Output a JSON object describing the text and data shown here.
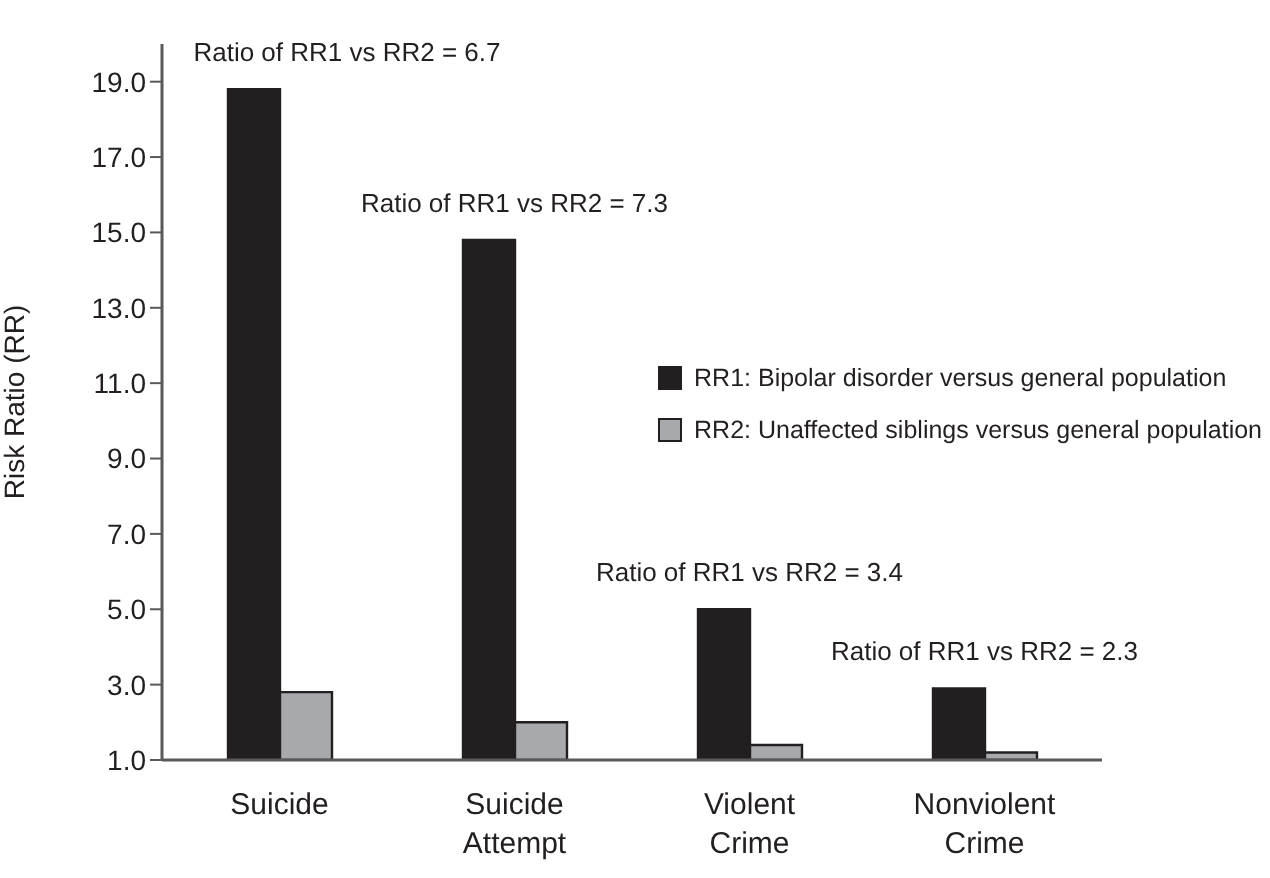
{
  "chart_data": {
    "type": "bar",
    "ylabel": "Risk Ratio (RR)",
    "categories": [
      "Suicide",
      "Suicide Attempt",
      "Violent Crime",
      "Nonviolent Crime"
    ],
    "series": [
      {
        "name": "RR1: Bipolar disorder versus general population",
        "color": "#231f20",
        "values": [
          18.8,
          14.8,
          5.0,
          2.9
        ]
      },
      {
        "name": "RR2: Unaffected siblings versus general population",
        "color": "#a7a9ac",
        "values": [
          2.8,
          2.0,
          1.4,
          1.2
        ]
      }
    ],
    "ylim": [
      1,
      20
    ],
    "yticks": [
      {
        "value": 1,
        "label": "1.0"
      },
      {
        "value": 3,
        "label": "3.0"
      },
      {
        "value": 5,
        "label": "5.0"
      },
      {
        "value": 7,
        "label": "7.0"
      },
      {
        "value": 9,
        "label": "9.0"
      },
      {
        "value": 11,
        "label": "11.0"
      },
      {
        "value": 13,
        "label": "13.0"
      },
      {
        "value": 15,
        "label": "15.0"
      },
      {
        "value": 17,
        "label": "17.0"
      },
      {
        "value": 19,
        "label": "19.0"
      }
    ],
    "annotations": [
      "Ratio of RR1 vs RR2 = 6.7",
      "Ratio of RR1 vs RR2 = 7.3",
      "Ratio of RR1 vs RR2 = 3.4",
      "Ratio of RR1 vs RR2 = 2.3"
    ],
    "legend": "right"
  }
}
